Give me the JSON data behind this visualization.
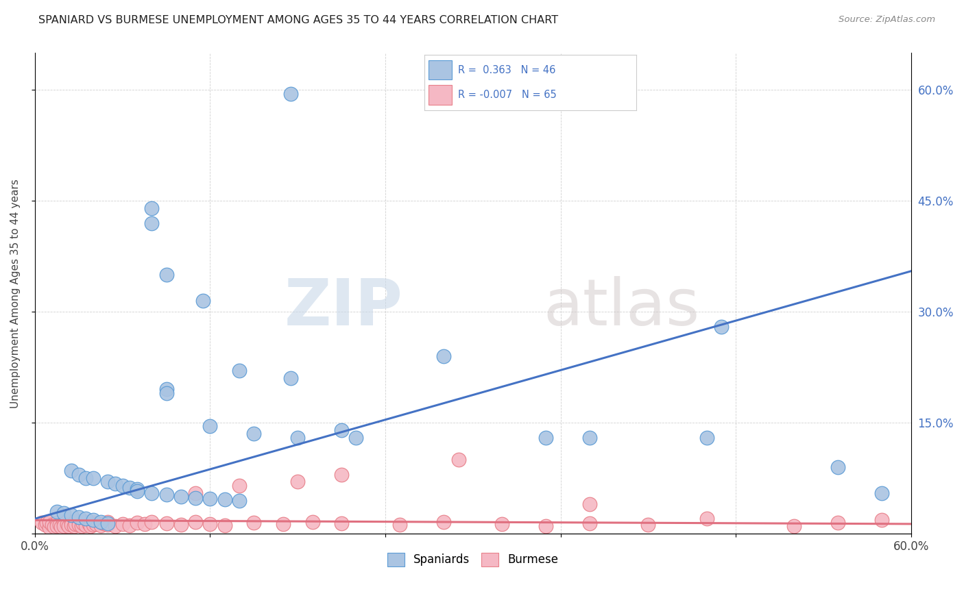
{
  "title": "SPANIARD VS BURMESE UNEMPLOYMENT AMONG AGES 35 TO 44 YEARS CORRELATION CHART",
  "source": "Source: ZipAtlas.com",
  "ylabel": "Unemployment Among Ages 35 to 44 years",
  "xlim": [
    0.0,
    0.6
  ],
  "ylim": [
    0.0,
    0.65
  ],
  "y_ticks": [
    0.0,
    0.15,
    0.3,
    0.45,
    0.6
  ],
  "y_tick_labels": [
    "",
    "15.0%",
    "30.0%",
    "45.0%",
    "60.0%"
  ],
  "spaniards_color": "#aac4e2",
  "burmese_color": "#f5b8c4",
  "spaniards_edge_color": "#5b9bd5",
  "burmese_edge_color": "#e8808a",
  "spaniards_line_color": "#4472c4",
  "burmese_line_color": "#e07080",
  "legend_R1": "0.363",
  "legend_N1": "46",
  "legend_R2": "-0.007",
  "legend_N2": "65",
  "watermark_zip": "ZIP",
  "watermark_atlas": "atlas",
  "sp_line_x0": 0.0,
  "sp_line_y0": 0.02,
  "sp_line_x1": 0.6,
  "sp_line_y1": 0.355,
  "bm_line_x0": 0.0,
  "bm_line_y0": 0.018,
  "bm_line_x1": 0.6,
  "bm_line_y1": 0.013,
  "spaniards_x": [
    0.175,
    0.08,
    0.08,
    0.09,
    0.115,
    0.47,
    0.28,
    0.14,
    0.175,
    0.09,
    0.09,
    0.12,
    0.15,
    0.18,
    0.21,
    0.22,
    0.35,
    0.38,
    0.46,
    0.55,
    0.025,
    0.03,
    0.035,
    0.04,
    0.05,
    0.055,
    0.06,
    0.065,
    0.07,
    0.07,
    0.08,
    0.09,
    0.1,
    0.11,
    0.12,
    0.13,
    0.14,
    0.015,
    0.02,
    0.025,
    0.03,
    0.035,
    0.04,
    0.045,
    0.05,
    0.58
  ],
  "spaniards_y": [
    0.595,
    0.44,
    0.42,
    0.35,
    0.315,
    0.28,
    0.24,
    0.22,
    0.21,
    0.195,
    0.19,
    0.145,
    0.135,
    0.13,
    0.14,
    0.13,
    0.13,
    0.13,
    0.13,
    0.09,
    0.085,
    0.08,
    0.075,
    0.075,
    0.07,
    0.068,
    0.065,
    0.062,
    0.06,
    0.057,
    0.055,
    0.053,
    0.05,
    0.048,
    0.047,
    0.046,
    0.044,
    0.03,
    0.028,
    0.025,
    0.022,
    0.02,
    0.018,
    0.016,
    0.014,
    0.055
  ],
  "burmese_x": [
    0.005,
    0.007,
    0.008,
    0.01,
    0.01,
    0.012,
    0.013,
    0.015,
    0.015,
    0.017,
    0.018,
    0.02,
    0.02,
    0.022,
    0.023,
    0.025,
    0.025,
    0.027,
    0.028,
    0.03,
    0.03,
    0.032,
    0.033,
    0.035,
    0.035,
    0.037,
    0.038,
    0.04,
    0.04,
    0.042,
    0.045,
    0.047,
    0.05,
    0.05,
    0.055,
    0.06,
    0.065,
    0.07,
    0.075,
    0.08,
    0.09,
    0.1,
    0.11,
    0.12,
    0.13,
    0.15,
    0.17,
    0.19,
    0.21,
    0.25,
    0.28,
    0.32,
    0.35,
    0.38,
    0.42,
    0.29,
    0.18,
    0.14,
    0.11,
    0.21,
    0.38,
    0.46,
    0.52,
    0.55,
    0.58
  ],
  "burmese_y": [
    0.015,
    0.012,
    0.015,
    0.008,
    0.016,
    0.012,
    0.009,
    0.015,
    0.01,
    0.012,
    0.009,
    0.015,
    0.01,
    0.013,
    0.01,
    0.016,
    0.012,
    0.01,
    0.013,
    0.017,
    0.012,
    0.01,
    0.014,
    0.016,
    0.011,
    0.013,
    0.01,
    0.015,
    0.012,
    0.013,
    0.011,
    0.014,
    0.016,
    0.012,
    0.01,
    0.013,
    0.011,
    0.015,
    0.013,
    0.016,
    0.014,
    0.012,
    0.016,
    0.013,
    0.011,
    0.015,
    0.013,
    0.016,
    0.014,
    0.012,
    0.016,
    0.013,
    0.01,
    0.014,
    0.012,
    0.1,
    0.07,
    0.065,
    0.055,
    0.08,
    0.04,
    0.02,
    0.01,
    0.015,
    0.018
  ]
}
